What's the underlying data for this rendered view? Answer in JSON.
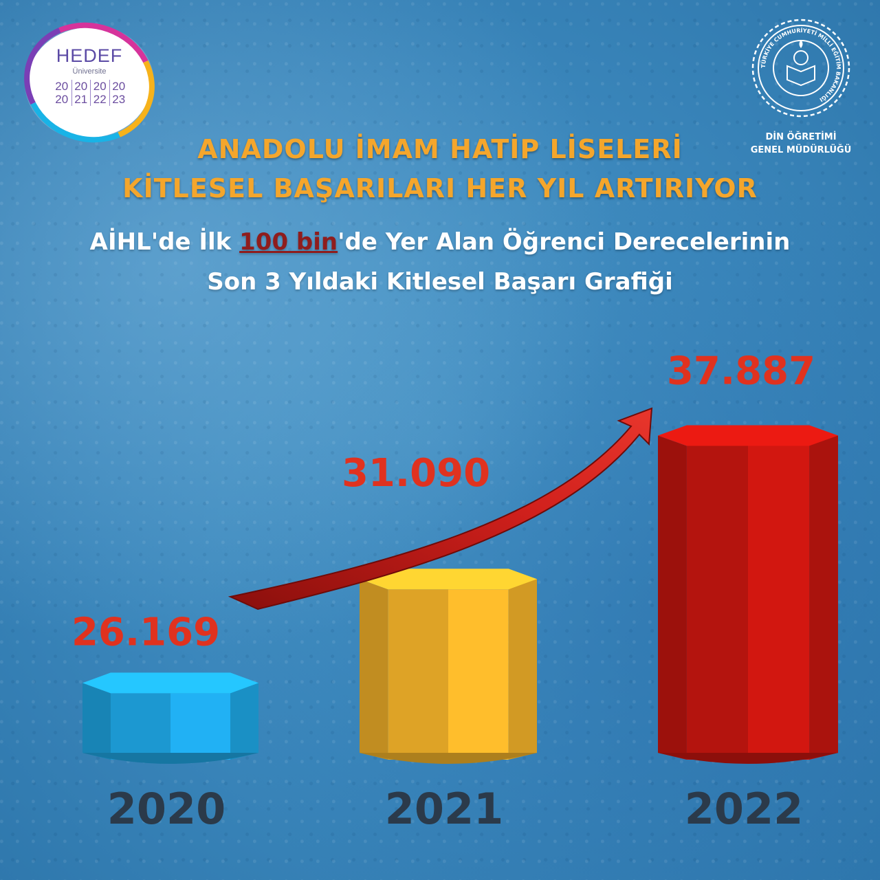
{
  "logo_left": {
    "name": "HEDEF",
    "sub": "Üniversite",
    "years": [
      "20",
      "20",
      "20",
      "20",
      "20",
      "21",
      "22",
      "23"
    ]
  },
  "logo_right": {
    "seal_text": "TÜRKİYE CUMHURİYETİ MİLLİ EĞİTİM BAKANLIĞI",
    "caption_line1": "DİN ÖĞRETİMİ",
    "caption_line2": "GENEL MÜDÜRLÜĞÜ"
  },
  "title": {
    "line1": "ANADOLU İMAM HATİP LİSELERİ",
    "line2": "KİTLESEL BAŞARILARI HER YIL ARTIRIYOR"
  },
  "subtitle": {
    "line1_before": "AİHL'de İlk ",
    "line1_highlight": "100 bin",
    "line1_after": "'de Yer Alan Öğrenci Derecelerinin",
    "line2": "Son 3 Yıldaki Kitlesel Başarı Grafiği"
  },
  "chart_data": {
    "type": "bar",
    "categories": [
      "2020",
      "2021",
      "2022"
    ],
    "values": [
      26169,
      31090,
      37887
    ],
    "value_labels": [
      "26.169",
      "31.090",
      "37.887"
    ],
    "colors": {
      "2020": "#1fa9e8",
      "2021": "#f7b52a",
      "2022": "#c8160f",
      "arrow": "#d0201c",
      "value_text": "#e0321f"
    },
    "grid": false
  }
}
